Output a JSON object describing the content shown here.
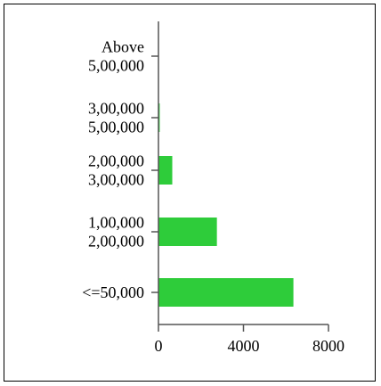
{
  "chart_data": {
    "type": "bar",
    "orientation": "horizontal",
    "categories": [
      [
        "Above",
        "5,00,000"
      ],
      [
        "3,00,000",
        "5,00,000"
      ],
      [
        "2,00,000",
        "3,00,000"
      ],
      [
        "1,00,000",
        "2,00,000"
      ],
      [
        "<=50,000"
      ]
    ],
    "values": [
      0,
      60,
      650,
      2750,
      6350
    ],
    "x_ticks": [
      "0",
      "4000",
      "8000"
    ],
    "xlim": [
      0,
      8000
    ],
    "bar_color": "#2ecc3a",
    "grid": false,
    "legend": "none"
  }
}
